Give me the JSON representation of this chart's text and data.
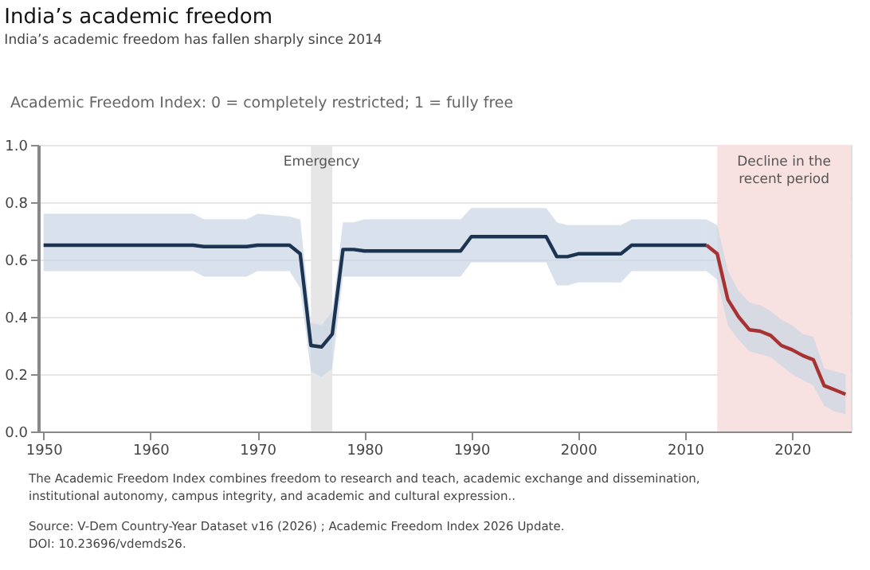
{
  "chart_data": {
    "type": "line",
    "title": "India’s academic freedom",
    "subtitle": "India’s academic freedom has fallen sharply since 2014",
    "ylabel": "Academic Freedom Index: 0 = completely restricted; 1 = fully free",
    "xlim": [
      1949.5,
      2025.5
    ],
    "xticks": [
      1950,
      1960,
      1970,
      1980,
      1990,
      2000,
      2010,
      2020
    ],
    "ylim": [
      0,
      1
    ],
    "yticks": [
      {
        "value": 0,
        "label": "0.0"
      },
      {
        "value": 0.2,
        "label": "0.2"
      },
      {
        "value": 0.4,
        "label": "0.4"
      },
      {
        "value": 0.6,
        "label": "0.6"
      },
      {
        "value": 0.8,
        "label": "0.8"
      },
      {
        "value": 1,
        "label": "1.0"
      }
    ],
    "grid": "y",
    "line_style": "solid",
    "marker": "none",
    "series": [
      {
        "color": "#1c3452",
        "x": [
          1950,
          1964,
          1965,
          1969,
          1970,
          1973,
          1974,
          1975,
          1976,
          1977,
          1978,
          1979,
          1980,
          1989,
          1990,
          1997,
          1998,
          1999,
          2000,
          2004,
          2005,
          2012
        ],
        "values": [
          0.65,
          0.65,
          0.645,
          0.645,
          0.65,
          0.65,
          0.62,
          0.3,
          0.295,
          0.34,
          0.635,
          0.635,
          0.63,
          0.63,
          0.68,
          0.68,
          0.61,
          0.61,
          0.62,
          0.62,
          0.65,
          0.65
        ],
        "lower": [
          0.56,
          0.56,
          0.54,
          0.54,
          0.56,
          0.56,
          0.5,
          0.21,
          0.19,
          0.22,
          0.54,
          0.54,
          0.54,
          0.54,
          0.59,
          0.59,
          0.51,
          0.51,
          0.52,
          0.52,
          0.56,
          0.56
        ],
        "upper": [
          0.76,
          0.76,
          0.74,
          0.74,
          0.76,
          0.75,
          0.74,
          0.38,
          0.37,
          0.42,
          0.73,
          0.73,
          0.74,
          0.74,
          0.78,
          0.78,
          0.73,
          0.72,
          0.72,
          0.72,
          0.74,
          0.74
        ]
      },
      {
        "color": "#a83232",
        "x": [
          2012,
          2013,
          2014,
          2015,
          2016,
          2017,
          2018,
          2019,
          2020,
          2021,
          2022,
          2023,
          2024,
          2025
        ],
        "values": [
          0.65,
          0.62,
          0.46,
          0.4,
          0.355,
          0.35,
          0.335,
          0.3,
          0.285,
          0.265,
          0.25,
          0.16,
          0.145,
          0.13
        ],
        "lower": [
          0.56,
          0.53,
          0.37,
          0.32,
          0.28,
          0.27,
          0.26,
          0.23,
          0.2,
          0.18,
          0.16,
          0.09,
          0.07,
          0.06
        ],
        "upper": [
          0.74,
          0.72,
          0.56,
          0.49,
          0.45,
          0.44,
          0.42,
          0.39,
          0.37,
          0.34,
          0.33,
          0.22,
          0.21,
          0.2
        ]
      }
    ],
    "bands": [
      {
        "axis": "x",
        "from": 1975,
        "to": 1977,
        "label": "Emergency",
        "color": "#e6e6e6"
      },
      {
        "axis": "x",
        "from": 2013,
        "to": 2025.5,
        "label": "Decline in the recent period",
        "color": "#f7e1e1"
      }
    ],
    "annotations": [
      "The Academic Freedom Index combines freedom to research and teach, academic exchange and dissemination, institutional autonomy, campus integrity, and academic and cultural expression..",
      "Source: V-Dem Country-Year Dataset v16 (2026) ; Academic Freedom Index 2026 Update.",
      "DOI: 10.23696/vdemds26."
    ]
  }
}
